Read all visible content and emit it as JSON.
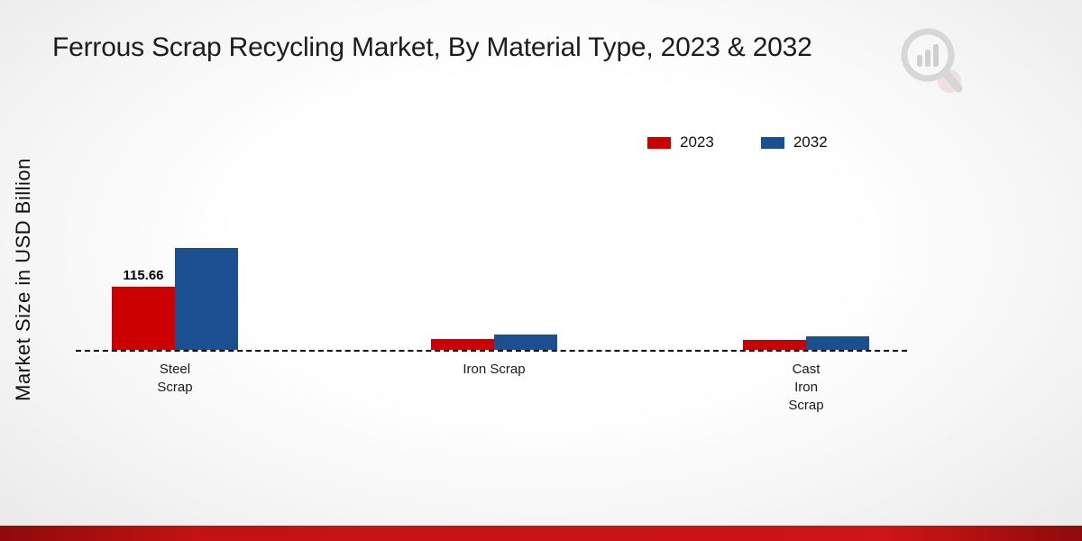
{
  "title": "Ferrous Scrap Recycling Market, By Material Type, 2023 & 2032",
  "y_axis_label": "Market Size in USD Billion",
  "legend": [
    {
      "label": "2023",
      "color": "#cc0000"
    },
    {
      "label": "2032",
      "color": "#1a5091"
    }
  ],
  "chart_data": {
    "type": "bar",
    "title": "Ferrous Scrap Recycling Market, By Material Type, 2023 & 2032",
    "ylabel": "Market Size in USD Billion",
    "categories": [
      "Steel Scrap",
      "Iron Scrap",
      "Cast Iron Scrap"
    ],
    "category_lines": [
      [
        "Steel",
        "Scrap"
      ],
      [
        "Iron Scrap"
      ],
      [
        "Cast",
        "Iron",
        "Scrap"
      ]
    ],
    "series": [
      {
        "name": "2023",
        "color": "#cc0000",
        "values": [
          115.66,
          19.8,
          18.2
        ],
        "value_labels": [
          "115.66",
          "",
          ""
        ]
      },
      {
        "name": "2032",
        "color": "#1a5091",
        "values": [
          186.7,
          28.1,
          24.8
        ],
        "value_labels": [
          "",
          "",
          ""
        ]
      }
    ],
    "ylim": [
      0,
      410
    ],
    "grid": false,
    "legend_position": "top-right",
    "baseline_style": "dashed"
  },
  "colors": {
    "accent_red": "#cc0000",
    "accent_blue": "#1a5091",
    "footer_bar": "#c31212"
  },
  "branding": {
    "logo": "magnifier-bar-chart-watermark"
  }
}
